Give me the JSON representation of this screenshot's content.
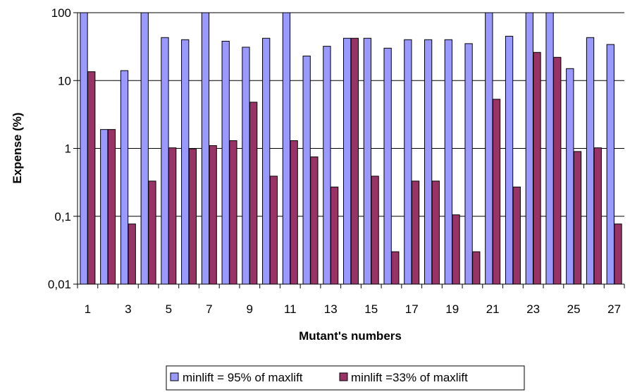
{
  "chart_data": {
    "type": "bar",
    "xlabel": "Mutant's numbers",
    "ylabel": "Expense (%)",
    "yscale": "log",
    "ylim": [
      0.01,
      100
    ],
    "y_ticks": [
      {
        "value": 100,
        "label": "100"
      },
      {
        "value": 10,
        "label": "10"
      },
      {
        "value": 1,
        "label": "1"
      },
      {
        "value": 0.1,
        "label": "0,1"
      },
      {
        "value": 0.01,
        "label": "0,01"
      }
    ],
    "categories": [
      "1",
      "2",
      "3",
      "4",
      "5",
      "6",
      "7",
      "8",
      "9",
      "10",
      "11",
      "12",
      "13",
      "14",
      "15",
      "16",
      "17",
      "18",
      "19",
      "20",
      "21",
      "22",
      "23",
      "24",
      "25",
      "26",
      "27"
    ],
    "x_tick_labels": [
      "1",
      "",
      "3",
      "",
      "5",
      "",
      "7",
      "",
      "9",
      "",
      "11",
      "",
      "13",
      "",
      "15",
      "",
      "17",
      "",
      "19",
      "",
      "21",
      "",
      "23",
      "",
      "25",
      "",
      "27"
    ],
    "grid": "horizontal",
    "legend_position": "bottom",
    "series": [
      {
        "name": "minlift = 95% of maxlift",
        "color": "#9999ff",
        "values": [
          100,
          1.9,
          14,
          100,
          43,
          40,
          100,
          38,
          31,
          42,
          100,
          23,
          32,
          42,
          42,
          30,
          40,
          40,
          40,
          35,
          100,
          45,
          100,
          100,
          15,
          43,
          34
        ]
      },
      {
        "name": "minlift =33% of maxlift",
        "color": "#993366",
        "values": [
          13.5,
          1.9,
          0.077,
          0.33,
          1.02,
          0.99,
          1.1,
          1.3,
          4.8,
          0.39,
          1.3,
          0.75,
          0.27,
          42,
          0.39,
          0.03,
          0.33,
          0.33,
          0.105,
          0.03,
          5.3,
          0.27,
          26,
          22,
          0.9,
          1.02,
          0.077
        ]
      }
    ]
  }
}
